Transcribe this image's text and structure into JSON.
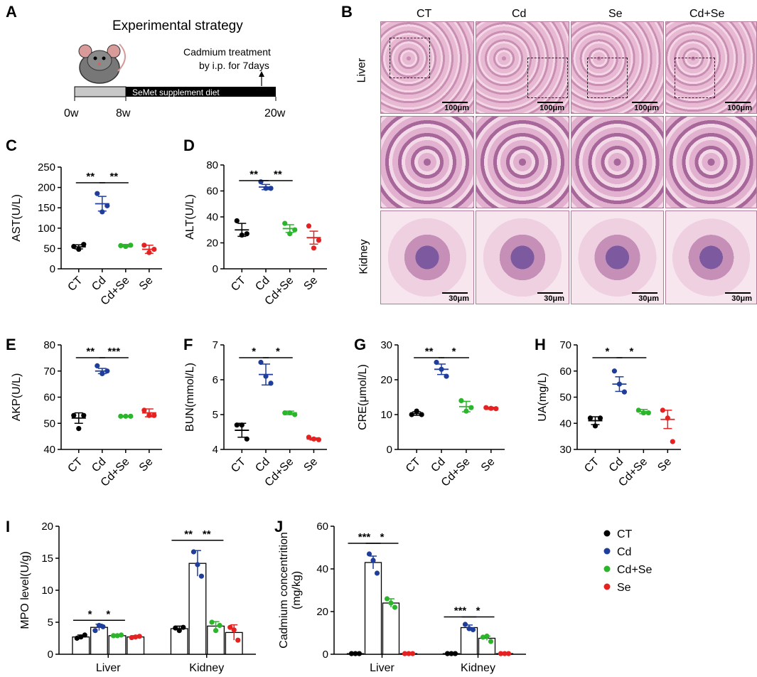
{
  "panel_A": {
    "letter": "A",
    "title": "Experimental strategy",
    "treatment_note_line1": "Cadmium treatment",
    "treatment_note_line2": "by i.p. for 7days",
    "bar_label": "SeMet supplement diet",
    "timepoints": [
      "0w",
      "8w",
      "20w"
    ]
  },
  "panel_B": {
    "letter": "B",
    "columns": [
      "CT",
      "Cd",
      "Se",
      "Cd+Se"
    ],
    "rows": [
      "Liver",
      "Kidney"
    ],
    "scale_top": "100μm",
    "scale_kidney": "30μm"
  },
  "colors": {
    "CT": "#000000",
    "Cd": "#1f3e9c",
    "Cd+Se": "#2bb52b",
    "Se": "#e52222"
  },
  "chart_data": [
    {
      "panel": "C",
      "type": "scatter",
      "ylabel": "AST(U/L)",
      "categories": [
        "CT",
        "Cd",
        "Cd+Se",
        "Se"
      ],
      "ylim": [
        0,
        250
      ],
      "yticks": [
        0,
        50,
        100,
        150,
        200,
        250
      ],
      "points": [
        [
          55,
          48,
          60
        ],
        [
          185,
          140,
          155
        ],
        [
          57,
          55,
          58
        ],
        [
          58,
          40,
          48
        ]
      ],
      "mean": [
        54,
        160,
        57,
        48
      ],
      "sem": [
        5,
        18,
        3,
        10
      ],
      "sig": [
        {
          "from": 0,
          "to": 1,
          "label": "**"
        },
        {
          "from": 1,
          "to": 2,
          "label": "**"
        }
      ]
    },
    {
      "panel": "D",
      "type": "scatter",
      "ylabel": "ALT(U/L)",
      "categories": [
        "CT",
        "Cd",
        "Cd+Se",
        "Se"
      ],
      "ylim": [
        0,
        80
      ],
      "yticks": [
        0,
        20,
        40,
        60,
        80
      ],
      "points": [
        [
          37,
          26,
          27
        ],
        [
          67,
          62,
          62
        ],
        [
          35,
          27,
          30
        ],
        [
          33,
          16,
          22
        ]
      ],
      "mean": [
        30,
        63,
        31,
        24
      ],
      "sem": [
        5,
        2,
        3,
        5
      ],
      "sig": [
        {
          "from": 0,
          "to": 1,
          "label": "**"
        },
        {
          "from": 1,
          "to": 2,
          "label": "**"
        }
      ]
    },
    {
      "panel": "E",
      "type": "scatter",
      "ylabel": "AKP(U/L)",
      "categories": [
        "CT",
        "Cd",
        "Cd+Se",
        "Se"
      ],
      "ylim": [
        40,
        80
      ],
      "yticks": [
        40,
        50,
        60,
        70,
        80
      ],
      "points": [
        [
          53,
          48,
          53
        ],
        [
          72,
          69,
          70
        ],
        [
          52.7,
          52.7,
          52.7
        ],
        [
          55,
          53,
          53
        ]
      ],
      "mean": [
        52,
        70,
        52.7,
        54
      ],
      "sem": [
        2,
        1,
        0.2,
        1.5
      ],
      "sig": [
        {
          "from": 0,
          "to": 1,
          "label": "**"
        },
        {
          "from": 1,
          "to": 2,
          "label": "***"
        }
      ]
    },
    {
      "panel": "F",
      "type": "scatter",
      "ylabel": "BUN(mmol/L)",
      "categories": [
        "CT",
        "Cd",
        "Cd+Se",
        "Se"
      ],
      "ylim": [
        4,
        7
      ],
      "yticks": [
        4,
        5,
        6,
        7
      ],
      "points": [
        [
          4.7,
          4.7,
          4.3
        ],
        [
          6.5,
          6.1,
          5.9
        ],
        [
          5.05,
          5.05,
          5.0
        ],
        [
          4.35,
          4.3,
          4.28
        ]
      ],
      "mean": [
        4.55,
        6.15,
        5.05,
        4.3
      ],
      "sem": [
        0.2,
        0.3,
        0.05,
        0.03
      ],
      "sig": [
        {
          "from": 0,
          "to": 1,
          "label": "*"
        },
        {
          "from": 1,
          "to": 2,
          "label": "*"
        }
      ]
    },
    {
      "panel": "G",
      "type": "scatter",
      "ylabel": "CRE(μmol/L)",
      "categories": [
        "CT",
        "Cd",
        "Cd+Se",
        "Se"
      ],
      "ylim": [
        0,
        30
      ],
      "yticks": [
        0,
        10,
        20,
        30
      ],
      "points": [
        [
          10,
          11,
          10
        ],
        [
          25,
          23,
          21
        ],
        [
          14,
          11,
          12
        ],
        [
          12,
          11.8,
          11.7
        ]
      ],
      "mean": [
        10.3,
        23,
        12.3,
        11.8
      ],
      "sem": [
        0.5,
        1.5,
        1.5,
        0.3
      ],
      "sig": [
        {
          "from": 0,
          "to": 1,
          "label": "**"
        },
        {
          "from": 1,
          "to": 2,
          "label": "*"
        }
      ]
    },
    {
      "panel": "H",
      "type": "scatter",
      "ylabel": "UA(mg/L)",
      "categories": [
        "CT",
        "Cd",
        "Cd+Se",
        "Se"
      ],
      "ylim": [
        30,
        70
      ],
      "yticks": [
        30,
        40,
        50,
        60,
        70
      ],
      "points": [
        [
          42,
          39,
          42
        ],
        [
          60,
          55,
          52
        ],
        [
          45,
          44,
          44
        ],
        [
          45,
          42,
          33
        ]
      ],
      "mean": [
        41,
        55,
        44.5,
        41.5
      ],
      "sem": [
        1.5,
        2.8,
        0.8,
        3.5
      ],
      "sig": [
        {
          "from": 0,
          "to": 1,
          "label": "*"
        },
        {
          "from": 1,
          "to": 2,
          "label": "*"
        }
      ]
    },
    {
      "panel": "I",
      "type": "bar",
      "ylabel": "MPO level(U/g)",
      "categories": [
        "Liver",
        "Kidney"
      ],
      "groups": [
        "CT",
        "Cd",
        "Cd+Se",
        "Se"
      ],
      "ylim": [
        0,
        20
      ],
      "yticks": [
        0,
        5,
        10,
        15,
        20
      ],
      "values": [
        [
          2.7,
          4.2,
          2.9,
          2.7
        ],
        [
          4.0,
          14.2,
          4.4,
          3.4
        ]
      ],
      "sem": [
        [
          0.3,
          0.5,
          0.2,
          0.2
        ],
        [
          0.4,
          2.0,
          0.7,
          1.2
        ]
      ],
      "points": [
        [
          [
            2.5,
            2.7,
            3.0
          ],
          [
            3.7,
            4.5,
            4.3
          ],
          [
            2.9,
            2.9,
            3.0
          ],
          [
            2.6,
            2.7,
            2.8
          ]
        ],
        [
          [
            4.1,
            3.7,
            4.2
          ],
          [
            16.0,
            14.0,
            12.2
          ],
          [
            5.0,
            3.7,
            4.5
          ],
          [
            4.2,
            3.8,
            2.2
          ]
        ]
      ],
      "sig": [
        {
          "cat": 0,
          "from": 0,
          "to": 1,
          "label": "*"
        },
        {
          "cat": 0,
          "from": 1,
          "to": 2,
          "label": "*"
        },
        {
          "cat": 1,
          "from": 0,
          "to": 1,
          "label": "**"
        },
        {
          "cat": 1,
          "from": 1,
          "to": 2,
          "label": "**"
        }
      ]
    },
    {
      "panel": "J",
      "type": "bar",
      "ylabel_line1": "Cadmium concentrition",
      "ylabel_line2": "(mg/kg)",
      "categories": [
        "Liver",
        "Kidney"
      ],
      "groups": [
        "CT",
        "Cd",
        "Cd+Se",
        "Se"
      ],
      "ylim": [
        0,
        60
      ],
      "yticks": [
        0,
        20,
        40,
        60
      ],
      "values": [
        [
          0.3,
          43,
          24,
          0.3
        ],
        [
          0.3,
          12.5,
          7.5,
          0.3
        ]
      ],
      "sem": [
        [
          0,
          3,
          2,
          0
        ],
        [
          0,
          1.2,
          1,
          0
        ]
      ],
      "points": [
        [
          [
            0.3,
            0.3,
            0.3
          ],
          [
            47,
            44,
            38
          ],
          [
            26,
            24,
            22
          ],
          [
            0.3,
            0.3,
            0.3
          ]
        ],
        [
          [
            0.3,
            0.3,
            0.3
          ],
          [
            14,
            12,
            11.5
          ],
          [
            8,
            8.5,
            6
          ],
          [
            0.3,
            0.3,
            0.3
          ]
        ]
      ],
      "sig": [
        {
          "cat": 0,
          "from": 0,
          "to": 1,
          "label": "***"
        },
        {
          "cat": 0,
          "from": 1,
          "to": 2,
          "label": "*"
        },
        {
          "cat": 1,
          "from": 0,
          "to": 1,
          "label": "***"
        },
        {
          "cat": 1,
          "from": 1,
          "to": 2,
          "label": "*"
        }
      ],
      "legend": [
        "CT",
        "Cd",
        "Cd+Se",
        "Se"
      ]
    }
  ]
}
